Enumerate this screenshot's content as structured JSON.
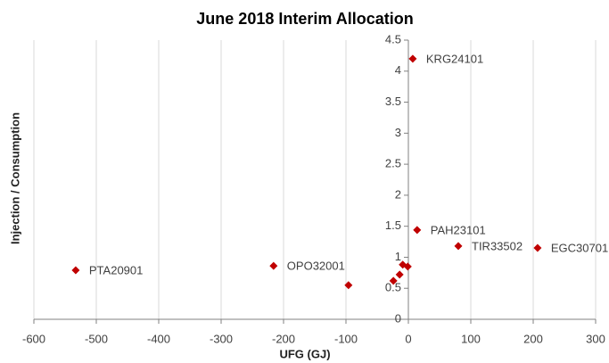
{
  "chart_data": {
    "type": "scatter",
    "title": "June 2018 Interim Allocation",
    "x_label": "UFG (GJ)",
    "y_label": "Injection / Consumption",
    "x": [
      7,
      14,
      80,
      207,
      -533,
      -216,
      -96,
      -24,
      -14,
      -9,
      -1
    ],
    "values": [
      4.2,
      1.44,
      1.18,
      1.15,
      0.79,
      0.86,
      0.55,
      0.62,
      0.72,
      0.88,
      0.85
    ],
    "labels": [
      "KRG24101",
      "PAH23101",
      "TIR33502",
      "EGC30701",
      "PTA20901",
      "OPO32001",
      null,
      null,
      null,
      null,
      null
    ],
    "color": "#c00000",
    "xlim": [
      -600,
      300
    ],
    "xticks": [
      -600,
      -500,
      -400,
      -300,
      -200,
      -100,
      0,
      100,
      200,
      300
    ],
    "ylim": [
      0,
      4.5
    ],
    "yticks": [
      0,
      0.5,
      1,
      1.5,
      2,
      2.5,
      3,
      3.5,
      4,
      4.5
    ],
    "grid": true
  }
}
